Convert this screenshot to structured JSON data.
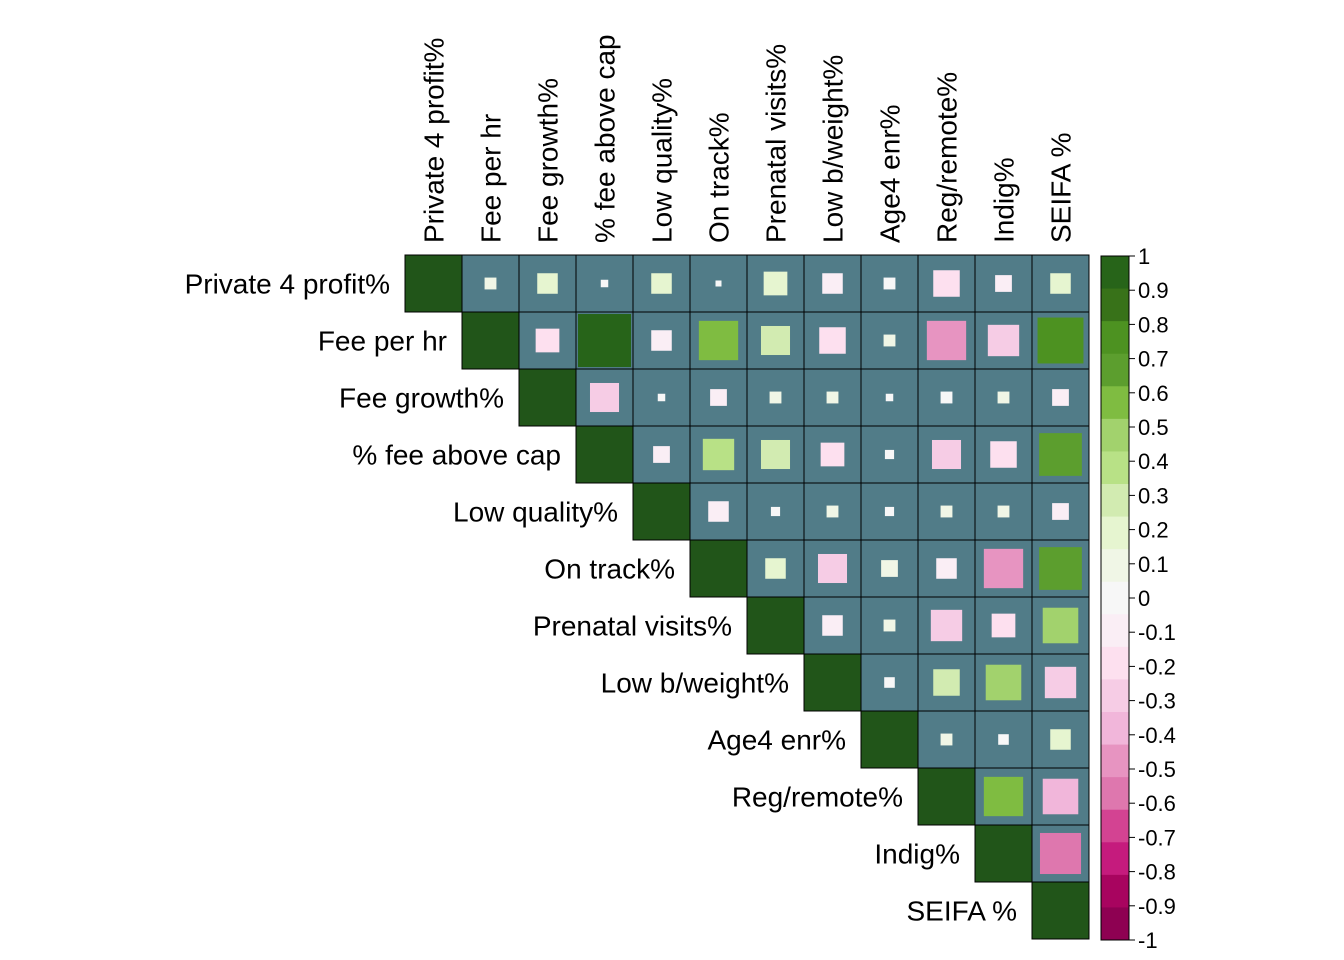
{
  "chart_data": {
    "type": "heatmap",
    "subtype": "correlation-matrix-upper-square",
    "variables": [
      "Private 4 profit%",
      "Fee per hr",
      "Fee growth%",
      "% fee above cap",
      "Low quality%",
      "On track%",
      "Prenatal visits%",
      "Low b/weight%",
      "Age4 enr%",
      "Reg/remote%",
      "Indig%",
      "SEIFA %"
    ],
    "matrix": [
      [
        1,
        0.05,
        0.15,
        0.02,
        0.15,
        0.01,
        0.2,
        -0.15,
        -0.05,
        -0.25,
        -0.1,
        0.15
      ],
      [
        null,
        1,
        -0.2,
        1,
        -0.15,
        0.55,
        0.3,
        -0.25,
        0.05,
        -0.55,
        -0.35,
        0.75
      ],
      [
        null,
        null,
        1,
        -0.3,
        0.02,
        -0.1,
        0.05,
        0.05,
        0.02,
        -0.05,
        0.05,
        -0.1
      ],
      [
        null,
        null,
        null,
        1,
        -0.1,
        0.35,
        0.3,
        -0.2,
        0.03,
        -0.3,
        -0.25,
        0.65
      ],
      [
        null,
        null,
        null,
        null,
        1,
        -0.15,
        0.03,
        0.05,
        0.03,
        0.05,
        0.05,
        -0.1
      ],
      [
        null,
        null,
        null,
        null,
        null,
        1,
        0.15,
        -0.3,
        0.1,
        -0.15,
        -0.55,
        0.65
      ],
      [
        null,
        null,
        null,
        null,
        null,
        null,
        1,
        -0.15,
        0.05,
        -0.35,
        -0.2,
        0.45
      ],
      [
        null,
        null,
        null,
        null,
        null,
        null,
        null,
        1,
        0.04,
        0.25,
        0.45,
        -0.35
      ],
      [
        null,
        null,
        null,
        null,
        null,
        null,
        null,
        null,
        1,
        0.05,
        0.04,
        0.15
      ],
      [
        null,
        null,
        null,
        null,
        null,
        null,
        null,
        null,
        null,
        1,
        0.55,
        -0.45
      ],
      [
        null,
        null,
        null,
        null,
        null,
        null,
        null,
        null,
        null,
        null,
        1,
        -0.6
      ],
      [
        null,
        null,
        null,
        null,
        null,
        null,
        null,
        null,
        null,
        null,
        null,
        1
      ]
    ],
    "scale": {
      "ticks": [
        "1",
        "0.9",
        "0.8",
        "0.7",
        "0.6",
        "0.5",
        "0.4",
        "0.3",
        "0.2",
        "0.1",
        "0",
        "-0.1",
        "-0.2",
        "-0.3",
        "-0.4",
        "-0.5",
        "-0.6",
        "-0.7",
        "-0.8",
        "-0.9",
        "-1"
      ],
      "range": [
        -1,
        1
      ],
      "colors": [
        "#8E0152",
        "#A8045F",
        "#C51B7D",
        "#D34392",
        "#DE77AE",
        "#E794C1",
        "#F1B6DA",
        "#F6CCE5",
        "#FDE0EF",
        "#FAEEF5",
        "#F7F7F7",
        "#F0F6E6",
        "#E6F5D0",
        "#D2EBB1",
        "#B8E186",
        "#A2D26D",
        "#7FBC41",
        "#5C9E2E",
        "#4D9221",
        "#387219",
        "#276419"
      ]
    },
    "cell_background": "#517C88",
    "diagonal_color": "#215519",
    "grid": true,
    "legend_position": "right"
  }
}
